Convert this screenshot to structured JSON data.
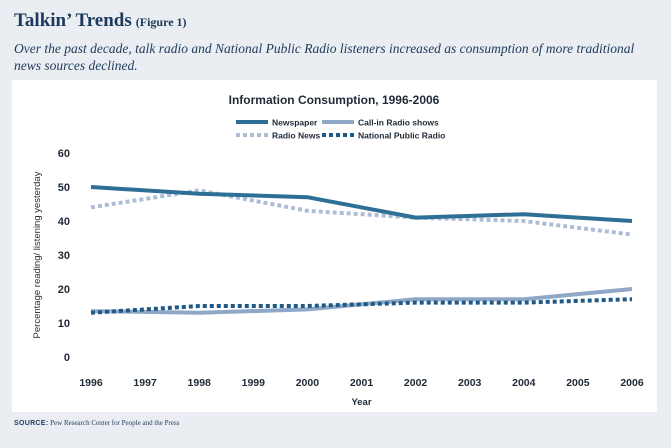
{
  "header": {
    "title": "Talkin’ Trends",
    "figure_label": "(Figure 1)",
    "subtitle": "Over the past decade, talk radio and National Public Radio listeners increased as consumption of more traditional news sources declined."
  },
  "footer": {
    "source_label": "SOURCE:",
    "source_text": "Pew Research Center for People and the Press"
  },
  "chart_data": {
    "type": "line",
    "title": "Information Consumption, 1996-2006",
    "xlabel": "Year",
    "ylabel": "Percentage reading/ listening yesterday",
    "x": [
      1996,
      1997,
      1998,
      1999,
      2000,
      2001,
      2002,
      2003,
      2004,
      2005,
      2006
    ],
    "ylim": [
      0,
      60
    ],
    "yticks": [
      0,
      10,
      20,
      30,
      40,
      50,
      60
    ],
    "grid": false,
    "legend_position": "top",
    "series": [
      {
        "name": "Newspaper",
        "style": "solid",
        "color": "#2e6f96",
        "points": [
          [
            1996,
            50
          ],
          [
            1998,
            48
          ],
          [
            2000,
            47
          ],
          [
            2002,
            41
          ],
          [
            2004,
            42
          ],
          [
            2006,
            40
          ]
        ]
      },
      {
        "name": "Call-in Radio shows",
        "style": "solid",
        "color": "#8fa8c8",
        "points": [
          [
            1996,
            13.5
          ],
          [
            1998,
            13
          ],
          [
            2000,
            14
          ],
          [
            2002,
            17
          ],
          [
            2004,
            17
          ],
          [
            2006,
            20
          ]
        ]
      },
      {
        "name": "Radio News",
        "style": "dotted",
        "color": "#aebdd6",
        "points": [
          [
            1996,
            44
          ],
          [
            1998,
            49
          ],
          [
            2000,
            43
          ],
          [
            2002,
            41
          ],
          [
            2004,
            40
          ],
          [
            2006,
            36
          ]
        ]
      },
      {
        "name": "National Public Radio",
        "style": "dotted",
        "color": "#1f5a86",
        "points": [
          [
            1996,
            13
          ],
          [
            1998,
            15
          ],
          [
            2000,
            15
          ],
          [
            2002,
            16
          ],
          [
            2004,
            16
          ],
          [
            2006,
            17
          ]
        ]
      }
    ]
  }
}
